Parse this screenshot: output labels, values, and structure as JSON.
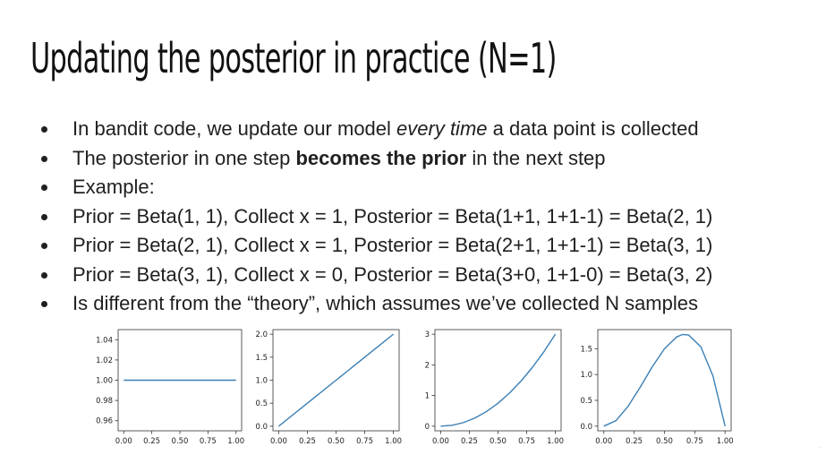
{
  "slide": {
    "title": "Updating the posterior in practice (N=1)",
    "bullets": [
      {
        "before": "In bandit code, we update our model ",
        "em": "every time",
        "after": " a data point is collected"
      },
      {
        "before": "The posterior in one step ",
        "strong": "becomes the prior",
        "after": " in the next step"
      },
      {
        "text": "Example:"
      },
      {
        "text": "Prior = Beta(1, 1), Collect x = 1, Posterior = Beta(1+1, 1+1-1) = Beta(2, 1)"
      },
      {
        "text": "Prior = Beta(2, 1), Collect x = 1, Posterior = Beta(2+1, 1+1-1) = Beta(3, 1)"
      },
      {
        "text": "Prior = Beta(3, 1), Collect x = 0, Posterior = Beta(3+0, 1+1-0) = Beta(3, 2)"
      },
      {
        "text": "Is different from the “theory”, which assumes we’ve collected N samples"
      }
    ],
    "colors": {
      "text": "#202020",
      "line": "#3a7fb5",
      "axes": "#333333"
    },
    "corner_mark": "·"
  },
  "chart_data": [
    {
      "type": "line",
      "x_ticks": [
        "0.00",
        "0.25",
        "0.50",
        "0.75",
        "1.00"
      ],
      "y_ticks": [
        "0.96",
        "0.98",
        "1.00",
        "1.02",
        "1.04"
      ],
      "xlim": [
        -0.05,
        1.05
      ],
      "ylim": [
        0.95,
        1.05
      ],
      "x": [
        0,
        0.25,
        0.5,
        0.75,
        1.0
      ],
      "y": [
        1.0,
        1.0,
        1.0,
        1.0,
        1.0
      ]
    },
    {
      "type": "line",
      "x_ticks": [
        "0.00",
        "0.25",
        "0.50",
        "0.75",
        "1.00"
      ],
      "y_ticks": [
        "0.0",
        "0.5",
        "1.0",
        "1.5",
        "2.0"
      ],
      "xlim": [
        -0.05,
        1.05
      ],
      "ylim": [
        -0.1,
        2.1
      ],
      "x": [
        0,
        0.25,
        0.5,
        0.75,
        1.0
      ],
      "y": [
        0,
        0.5,
        1.0,
        1.5,
        2.0
      ]
    },
    {
      "type": "line",
      "x_ticks": [
        "0.00",
        "0.25",
        "0.50",
        "0.75",
        "1.00"
      ],
      "y_ticks": [
        "0",
        "1",
        "2",
        "3"
      ],
      "xlim": [
        -0.05,
        1.05
      ],
      "ylim": [
        -0.15,
        3.15
      ],
      "x": [
        0,
        0.1,
        0.2,
        0.3,
        0.4,
        0.5,
        0.6,
        0.7,
        0.8,
        0.9,
        1.0
      ],
      "y": [
        0,
        0.03,
        0.12,
        0.27,
        0.48,
        0.75,
        1.08,
        1.47,
        1.92,
        2.43,
        3.0
      ]
    },
    {
      "type": "line",
      "x_ticks": [
        "0.00",
        "0.25",
        "0.50",
        "0.75",
        "1.00"
      ],
      "y_ticks": [
        "0.0",
        "0.5",
        "1.0",
        "1.5"
      ],
      "xlim": [
        -0.05,
        1.05
      ],
      "ylim": [
        -0.09,
        1.87
      ],
      "x": [
        0,
        0.1,
        0.2,
        0.3,
        0.4,
        0.5,
        0.6,
        0.65,
        0.7,
        0.8,
        0.9,
        1.0
      ],
      "y": [
        0,
        0.108,
        0.384,
        0.756,
        1.152,
        1.5,
        1.728,
        1.775,
        1.764,
        1.536,
        0.972,
        0
      ]
    }
  ]
}
